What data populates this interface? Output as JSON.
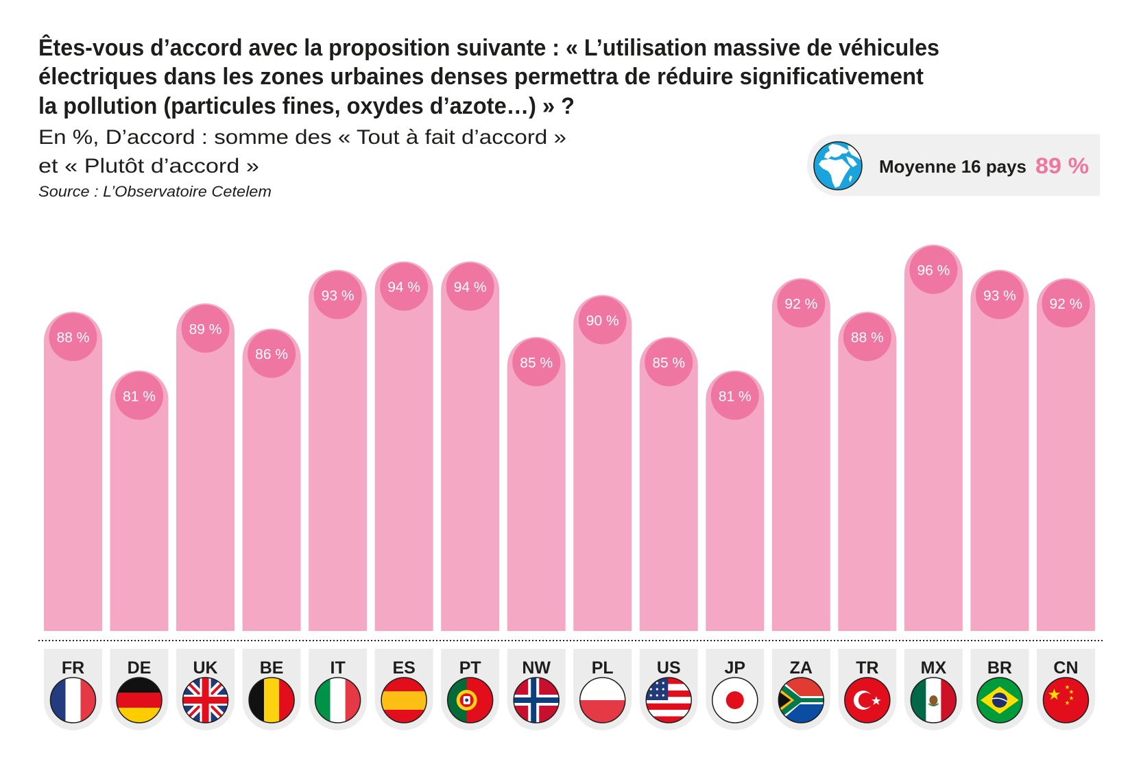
{
  "title_lines": [
    "Êtes-vous d’accord avec la proposition suivante : « L’utilisation massive de véhicules",
    "électriques dans les zones urbaines denses permettra de réduire significativement",
    "la pollution (particules fines, oxydes d’azote…) » ?"
  ],
  "subtitle_lines": [
    "En %, D’accord : somme des « Tout à fait d’accord »",
    "et « Plutôt d’accord »"
  ],
  "source": "Source : L’Observatoire Cetelem",
  "average_badge": {
    "icon": "globe-icon",
    "label": "Moyenne 16 pays",
    "value": "89 %"
  },
  "colors": {
    "bar": "#f4a8c3",
    "label_circle": "#ee76a0",
    "accent": "#ee76a0",
    "card": "#ececec",
    "badge_bg": "#f0f0f0",
    "globe": "#1aa3dc"
  },
  "chart_data": {
    "type": "bar",
    "title": "Êtes-vous d’accord avec la proposition suivante : « L’utilisation massive de véhicules électriques dans les zones urbaines denses permettra de réduire significativement la pollution (particules fines, oxydes d’azote…) » ?",
    "subtitle": "En %, D’accord : somme des « Tout à fait d’accord » et « Plutôt d’accord »",
    "xlabel": "",
    "ylabel": "",
    "unit": "%",
    "grid": false,
    "legend": "none",
    "categories": [
      "FR",
      "DE",
      "UK",
      "BE",
      "IT",
      "ES",
      "PT",
      "NW",
      "PL",
      "US",
      "JP",
      "ZA",
      "TR",
      "MX",
      "BR",
      "CN"
    ],
    "values": [
      88,
      81,
      89,
      86,
      93,
      94,
      94,
      85,
      90,
      85,
      81,
      92,
      88,
      96,
      93,
      92
    ],
    "labels": [
      "88 %",
      "81 %",
      "89 %",
      "86 %",
      "93 %",
      "94 %",
      "94 %",
      "85 %",
      "90 %",
      "85 %",
      "81 %",
      "92 %",
      "88 %",
      "96 %",
      "93 %",
      "92 %"
    ],
    "flags": [
      "flag-france-icon",
      "flag-germany-icon",
      "flag-uk-icon",
      "flag-belgium-icon",
      "flag-italy-icon",
      "flag-spain-icon",
      "flag-portugal-icon",
      "flag-norway-icon",
      "flag-poland-icon",
      "flag-usa-icon",
      "flag-japan-icon",
      "flag-south-africa-icon",
      "flag-turkey-icon",
      "flag-mexico-icon",
      "flag-brazil-icon",
      "flag-china-icon"
    ],
    "annotations": [
      "Moyenne 16 pays 89 %"
    ]
  }
}
